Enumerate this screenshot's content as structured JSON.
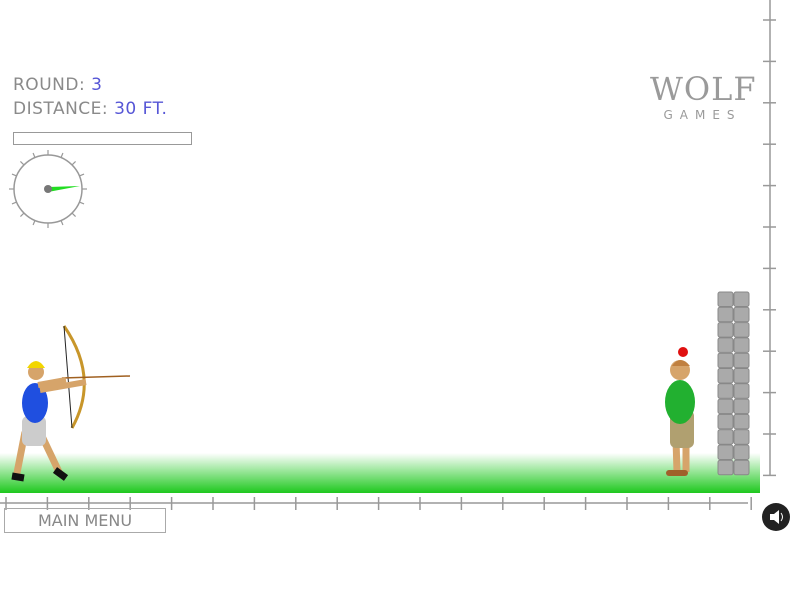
{
  "hud": {
    "round_label": "ROUND:",
    "round_value": "3",
    "distance_label": "DISTANCE:",
    "distance_value": "30 FT.",
    "power_fraction": 0
  },
  "logo": {
    "wolf": "WOLF",
    "games": "GAMES"
  },
  "buttons": {
    "main_menu": "MAIN MENU",
    "sound_icon": "speaker-icon"
  },
  "colors": {
    "ground": "#22cc22",
    "hud_value": "#5656d6",
    "hud_label": "#8a8a8a",
    "wind_needle": "#22dd22"
  }
}
